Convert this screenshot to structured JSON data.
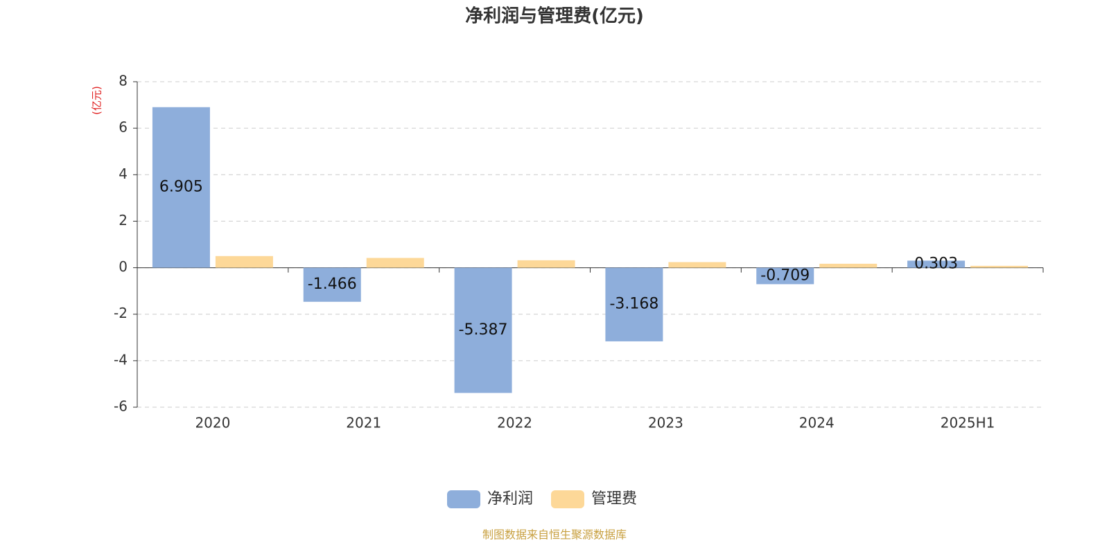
{
  "chart_data": {
    "type": "bar",
    "title": "净利润与管理费(亿元)",
    "y_label": "(亿元)",
    "categories": [
      "2020",
      "2021",
      "2022",
      "2023",
      "2024",
      "2025H1"
    ],
    "series": [
      {
        "name": "净利润",
        "color": "#8eaedb",
        "values": [
          6.905,
          -1.466,
          -5.387,
          -3.168,
          -0.709,
          0.303
        ]
      },
      {
        "name": "管理费",
        "color": "#fdd898",
        "values": [
          0.5,
          0.42,
          0.32,
          0.24,
          0.17,
          0.08
        ]
      }
    ],
    "ylim": [
      -6,
      8
    ],
    "yticks": [
      -6,
      -4,
      -2,
      0,
      2,
      4,
      6,
      8
    ],
    "grid": true,
    "source": "制图数据来自恒生聚源数据库"
  }
}
